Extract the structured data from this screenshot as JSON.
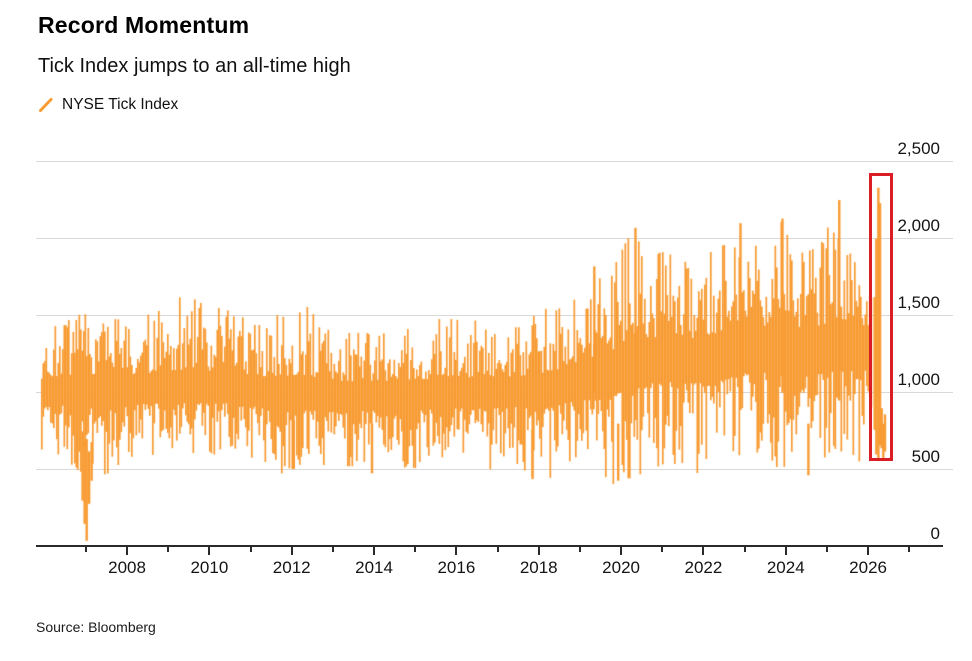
{
  "header": {
    "title": "Record Momentum",
    "subtitle": "Tick Index jumps to an all-time high"
  },
  "legend": {
    "label": "NYSE Tick Index",
    "marker": "orange-slash"
  },
  "source": {
    "label": "Source: Bloomberg"
  },
  "colors": {
    "accent_orange": "#F89B33",
    "highlight_red": "#DB1E26",
    "gridline": "#D9D9D9",
    "axis": "#2A2A2A",
    "title_text": "#000000",
    "body_text": "#141414"
  },
  "chart_data": {
    "type": "line",
    "title": "Record Momentum",
    "subtitle": "Tick Index jumps to an all-time high",
    "series_name": "NYSE Tick Index",
    "x_axis": {
      "unit": "year",
      "range": [
        2005.8,
        2027.8
      ],
      "labeled_ticks": [
        2008,
        2010,
        2012,
        2014,
        2016,
        2018,
        2020,
        2022,
        2024,
        2026
      ],
      "minor_ticks": [
        2007,
        2009,
        2011,
        2013,
        2015,
        2017,
        2019,
        2021,
        2023,
        2025,
        2027
      ]
    },
    "y_axis": {
      "ticks": [
        0,
        500,
        1000,
        1500,
        2000,
        2500
      ],
      "min": 0,
      "max": 2500,
      "grid": "horizontal",
      "labels_side": "right"
    },
    "series": [
      {
        "name": "NYSE Tick Index",
        "color": "#F89B33",
        "data_start_year": 2005.93,
        "data_end_year": 2026.08,
        "envelope_low_high": [
          [
            2005.93,
            620,
            1380
          ],
          [
            2006.4,
            560,
            1480
          ],
          [
            2006.9,
            480,
            1520
          ],
          [
            2007.35,
            430,
            1500
          ],
          [
            2008.0,
            560,
            1500
          ],
          [
            2008.7,
            600,
            1520
          ],
          [
            2009.4,
            620,
            1650
          ],
          [
            2010.0,
            580,
            1560
          ],
          [
            2010.6,
            620,
            1560
          ],
          [
            2011.2,
            540,
            1470
          ],
          [
            2011.9,
            460,
            1560
          ],
          [
            2012.2,
            500,
            1620
          ],
          [
            2012.7,
            530,
            1470
          ],
          [
            2013.2,
            500,
            1400
          ],
          [
            2013.8,
            540,
            1460
          ],
          [
            2014.4,
            530,
            1420
          ],
          [
            2015.0,
            500,
            1440
          ],
          [
            2015.6,
            530,
            1480
          ],
          [
            2016.2,
            540,
            1500
          ],
          [
            2016.8,
            500,
            1440
          ],
          [
            2017.4,
            550,
            1420
          ],
          [
            2018.0,
            420,
            1540
          ],
          [
            2018.6,
            460,
            1560
          ],
          [
            2019.2,
            520,
            1700
          ],
          [
            2019.8,
            400,
            1800
          ],
          [
            2020.25,
            430,
            2070
          ],
          [
            2020.7,
            500,
            1900
          ],
          [
            2021.2,
            540,
            1930
          ],
          [
            2021.8,
            480,
            1850
          ],
          [
            2022.4,
            450,
            1950
          ],
          [
            2022.9,
            520,
            2100
          ],
          [
            2023.4,
            590,
            1930
          ],
          [
            2023.9,
            460,
            2130
          ],
          [
            2024.4,
            480,
            1950
          ],
          [
            2024.9,
            550,
            2000
          ],
          [
            2025.3,
            580,
            2250
          ],
          [
            2025.7,
            540,
            1900
          ],
          [
            2026.08,
            600,
            1900
          ]
        ],
        "center_line": [
          [
            2005.93,
            1020
          ],
          [
            2010,
            1030
          ],
          [
            2013,
            980
          ],
          [
            2016,
            1000
          ],
          [
            2018,
            1020
          ],
          [
            2019.5,
            1120
          ],
          [
            2020.5,
            1220
          ],
          [
            2022,
            1230
          ],
          [
            2023,
            1300
          ],
          [
            2024.5,
            1280
          ],
          [
            2026.08,
            1320
          ]
        ],
        "notable_spikes": [
          [
            2006.92,
            750,
            300
          ],
          [
            2006.97,
            680,
            150
          ],
          [
            2007.02,
            700,
            40
          ],
          [
            2007.08,
            620,
            280
          ],
          [
            2007.14,
            680,
            430
          ],
          [
            2012.05,
            820,
            505
          ],
          [
            2013.95,
            800,
            478
          ],
          [
            2017.85,
            760,
            440
          ],
          [
            2019.35,
            1000,
            1820
          ],
          [
            2019.93,
            800,
            430
          ],
          [
            2020.35,
            1000,
            2070
          ],
          [
            2022.9,
            1000,
            2100
          ],
          [
            2023.92,
            1000,
            2130
          ],
          [
            2024.55,
            800,
            465
          ],
          [
            2025.3,
            950,
            2250
          ],
          [
            2026.16,
            760,
            1620
          ],
          [
            2026.2,
            600,
            2000
          ],
          [
            2026.25,
            560,
            2330
          ],
          [
            2026.29,
            660,
            2230
          ],
          [
            2026.33,
            640,
            900
          ],
          [
            2026.37,
            560,
            800
          ],
          [
            2026.41,
            620,
            860
          ]
        ],
        "record_high_value": 2330,
        "record_low_value": 40
      }
    ],
    "annotations": {
      "highlight_box": {
        "purpose": "marks all-time-high spike",
        "x_start": 2026.03,
        "x_end": 2026.45,
        "y_bottom": 596,
        "y_top": 2425,
        "color": "#DB1E26",
        "stroke_px": 3
      }
    },
    "legend_position": "top-left",
    "source": "Source: Bloomberg"
  }
}
